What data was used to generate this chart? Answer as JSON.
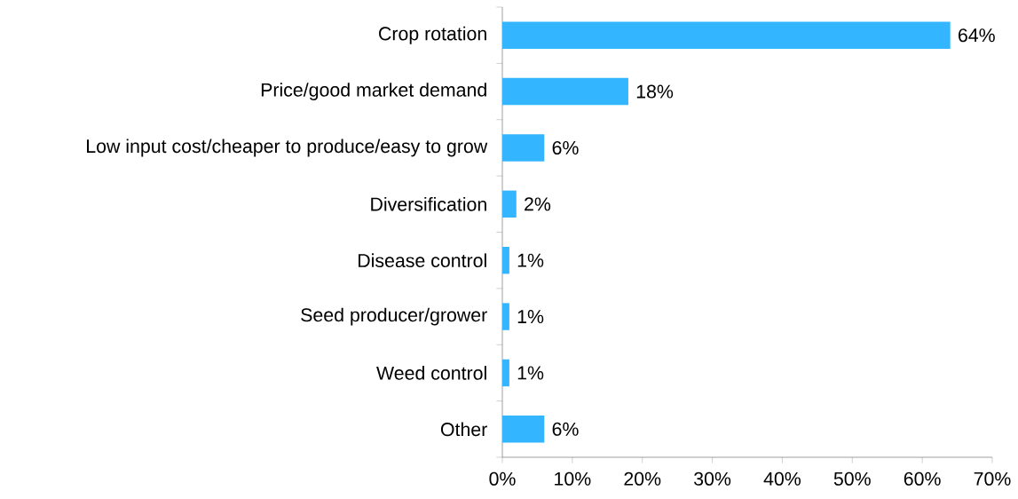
{
  "chart_data": {
    "type": "bar",
    "orientation": "horizontal",
    "categories": [
      "Crop rotation",
      "Price/good market demand",
      "Low input cost/cheaper to produce/easy to grow",
      "Diversification",
      "Disease control",
      "Seed producer/grower",
      "Weed control",
      "Other"
    ],
    "values": [
      64,
      18,
      6,
      2,
      1,
      1,
      1,
      6
    ],
    "value_labels": [
      "64%",
      "18%",
      "6%",
      "2%",
      "1%",
      "1%",
      "1%",
      "6%"
    ],
    "color": "#33b5ff",
    "xlim": [
      0,
      70
    ],
    "xticks": [
      {
        "value": 0,
        "label": "0%"
      },
      {
        "value": 10,
        "label": "10%"
      },
      {
        "value": 20,
        "label": "20%"
      },
      {
        "value": 30,
        "label": "30%"
      },
      {
        "value": 40,
        "label": "40%"
      },
      {
        "value": 50,
        "label": "50%"
      },
      {
        "value": 60,
        "label": "60%"
      },
      {
        "value": 70,
        "label": "70%"
      }
    ],
    "grid": false
  }
}
